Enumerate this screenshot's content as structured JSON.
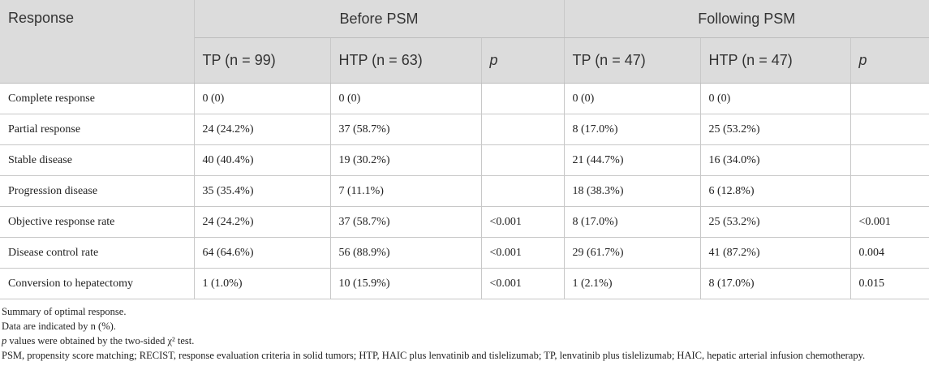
{
  "table": {
    "header_response": "Response",
    "groups": [
      "Before PSM",
      "Following PSM"
    ],
    "subheaders": [
      "TP (n = 99)",
      "HTP (n = 63)",
      "p",
      "TP (n = 47)",
      "HTP (n = 47)",
      "p"
    ],
    "rows": [
      {
        "label": "Complete response",
        "cells": [
          "0 (0)",
          "0 (0)",
          "",
          "0 (0)",
          "0 (0)",
          ""
        ]
      },
      {
        "label": "Partial response",
        "cells": [
          "24 (24.2%)",
          "37 (58.7%)",
          "",
          "8 (17.0%)",
          "25 (53.2%)",
          ""
        ]
      },
      {
        "label": "Stable disease",
        "cells": [
          "40 (40.4%)",
          "19 (30.2%)",
          "",
          "21 (44.7%)",
          "16 (34.0%)",
          ""
        ]
      },
      {
        "label": "Progression disease",
        "cells": [
          "35 (35.4%)",
          "7 (11.1%)",
          "",
          "18 (38.3%)",
          "6 (12.8%)",
          ""
        ]
      },
      {
        "label": "Objective response rate",
        "cells": [
          "24 (24.2%)",
          "37 (58.7%)",
          "<0.001",
          "8 (17.0%)",
          "25 (53.2%)",
          "<0.001"
        ]
      },
      {
        "label": "Disease control rate",
        "cells": [
          "64 (64.6%)",
          "56 (88.9%)",
          "<0.001",
          "29 (61.7%)",
          "41 (87.2%)",
          "0.004"
        ]
      },
      {
        "label": "Conversion to hepatectomy",
        "cells": [
          "1 (1.0%)",
          "10 (15.9%)",
          "<0.001",
          "1 (2.1%)",
          "8 (17.0%)",
          "0.015"
        ]
      }
    ]
  },
  "notes": {
    "summary": "Summary of optimal response.",
    "data": "Data are indicated by n (%).",
    "p_symbol": "p",
    "p_rest": " values were obtained by the two-sided χ² test.",
    "abbreviations": "PSM, propensity score matching; RECIST, response evaluation criteria in solid tumors; HTP, HAIC plus lenvatinib and tislelizumab; TP, lenvatinib plus tislelizumab; HAIC, hepatic arterial infusion chemotherapy."
  }
}
